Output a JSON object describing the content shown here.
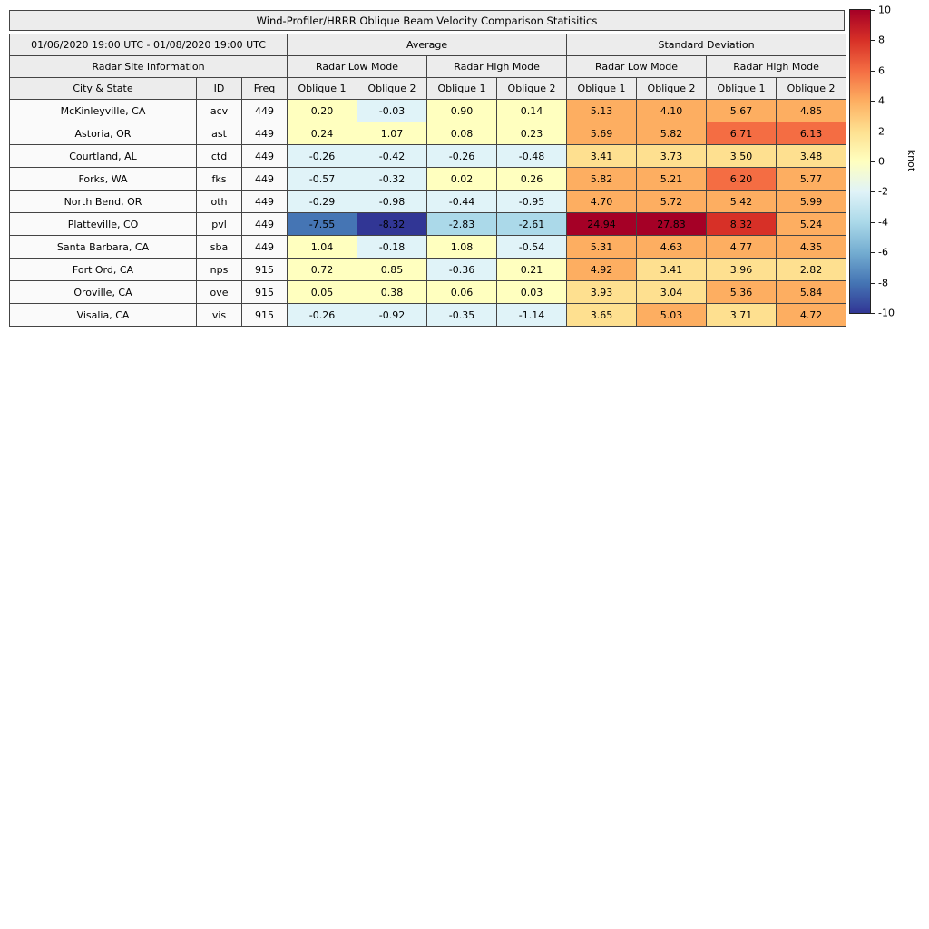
{
  "title": "Wind-Profiler/HRRR Oblique Beam Velocity Comparison Statisitics",
  "table": {
    "date_range": "01/06/2020 19:00 UTC - 01/08/2020 19:00 UTC",
    "group_average": "Average",
    "group_std": "Standard Deviation",
    "site_info": "Radar Site Information",
    "low_mode": "Radar Low Mode",
    "high_mode": "Radar High Mode",
    "col_city": "City & State",
    "col_id": "ID",
    "col_freq": "Freq",
    "col_oblique1": "Oblique 1",
    "col_oblique2": "Oblique 2"
  },
  "chart_data": {
    "type": "heatmap",
    "title": "Wind-Profiler/HRRR Oblique Beam Velocity Comparison Statisitics",
    "columns": [
      "Average Low Mode Oblique 1",
      "Average Low Mode Oblique 2",
      "Average High Mode Oblique 1",
      "Average High Mode Oblique 2",
      "Std Dev Low Mode Oblique 1",
      "Std Dev Low Mode Oblique 2",
      "Std Dev High Mode Oblique 1",
      "Std Dev High Mode Oblique 2"
    ],
    "rows": [
      {
        "city": "McKinleyville, CA",
        "id": "acv",
        "freq": "449",
        "values": [
          0.2,
          -0.03,
          0.9,
          0.14,
          5.13,
          4.1,
          5.67,
          4.85
        ]
      },
      {
        "city": "Astoria, OR",
        "id": "ast",
        "freq": "449",
        "values": [
          0.24,
          1.07,
          0.08,
          0.23,
          5.69,
          5.82,
          6.71,
          6.13
        ]
      },
      {
        "city": "Courtland, AL",
        "id": "ctd",
        "freq": "449",
        "values": [
          -0.26,
          -0.42,
          -0.26,
          -0.48,
          3.41,
          3.73,
          3.5,
          3.48
        ]
      },
      {
        "city": "Forks, WA",
        "id": "fks",
        "freq": "449",
        "values": [
          -0.57,
          -0.32,
          0.02,
          0.26,
          5.82,
          5.21,
          6.2,
          5.77
        ]
      },
      {
        "city": "North Bend, OR",
        "id": "oth",
        "freq": "449",
        "values": [
          -0.29,
          -0.98,
          -0.44,
          -0.95,
          4.7,
          5.72,
          5.42,
          5.99
        ]
      },
      {
        "city": "Platteville, CO",
        "id": "pvl",
        "freq": "449",
        "values": [
          -7.55,
          -8.32,
          -2.83,
          -2.61,
          24.94,
          27.83,
          8.32,
          5.24
        ]
      },
      {
        "city": "Santa Barbara, CA",
        "id": "sba",
        "freq": "449",
        "values": [
          1.04,
          -0.18,
          1.08,
          -0.54,
          5.31,
          4.63,
          4.77,
          4.35
        ]
      },
      {
        "city": "Fort Ord, CA",
        "id": "nps",
        "freq": "915",
        "values": [
          0.72,
          0.85,
          -0.36,
          0.21,
          4.92,
          3.41,
          3.96,
          2.82
        ]
      },
      {
        "city": "Oroville, CA",
        "id": "ove",
        "freq": "915",
        "values": [
          0.05,
          0.38,
          0.06,
          0.03,
          3.93,
          3.04,
          5.36,
          5.84
        ]
      },
      {
        "city": "Visalia, CA",
        "id": "vis",
        "freq": "915",
        "values": [
          -0.26,
          -0.92,
          -0.35,
          -1.14,
          3.65,
          5.03,
          3.71,
          4.72
        ]
      }
    ],
    "colorbar": {
      "label": "knot",
      "min": -10,
      "max": 10,
      "bin_width": 2,
      "ticks": [
        10,
        8,
        6,
        4,
        2,
        0,
        -2,
        -4,
        -6,
        -8,
        -10
      ],
      "palette": [
        "#313695",
        "#4575b4",
        "#74add1",
        "#abd9e9",
        "#e0f3f8",
        "#ffffbf",
        "#fee090",
        "#fdae61",
        "#f46d43",
        "#d73027"
      ],
      "over_color": "#a50026",
      "gradient": [
        "#313695",
        "#4575b4",
        "#74add1",
        "#abd9e9",
        "#e0f3f8",
        "#ffffbf",
        "#fee090",
        "#fdae61",
        "#f46d43",
        "#d73027",
        "#a50026"
      ]
    }
  }
}
